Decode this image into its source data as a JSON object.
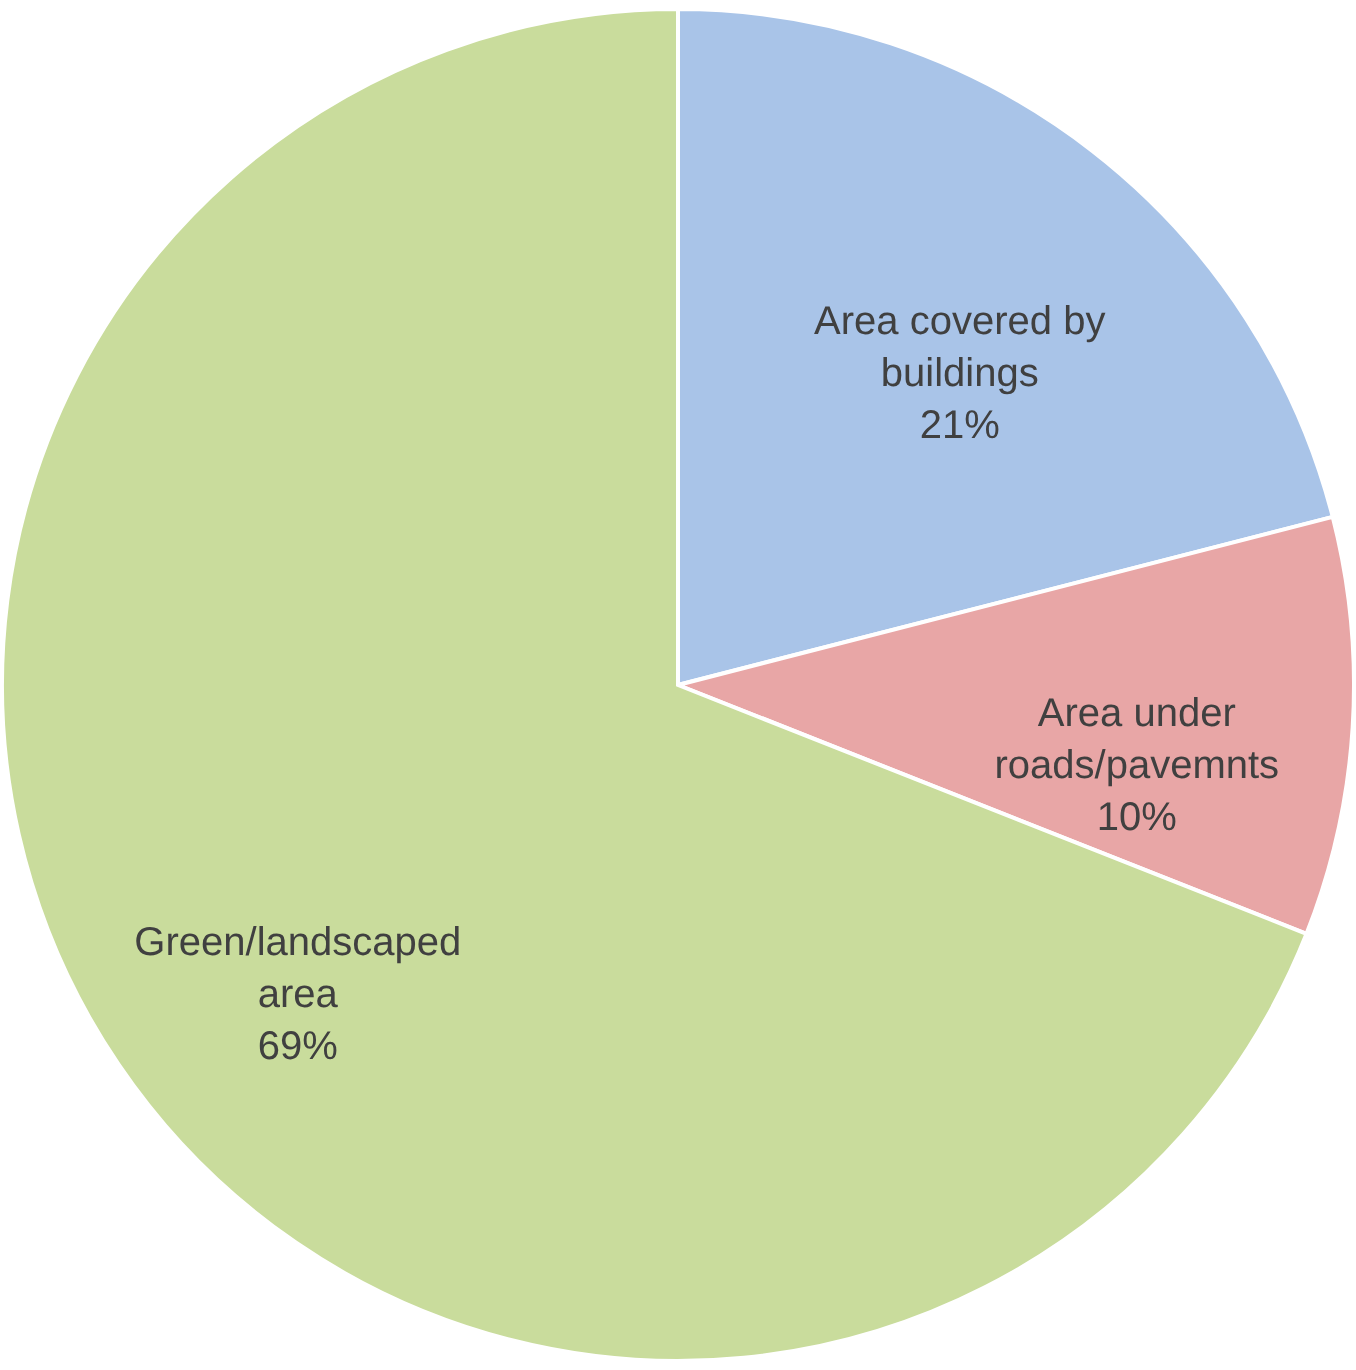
{
  "chart_data": {
    "type": "pie",
    "categories": [
      "Area covered by buildings",
      "Area under roads/pavemnts",
      "Green/landscaped area"
    ],
    "values": [
      21,
      10,
      69
    ],
    "value_labels": [
      "21%",
      "10%",
      "69%"
    ],
    "colors": [
      "#a9c4e8",
      "#e8a6a6",
      "#c9dc9c"
    ]
  }
}
